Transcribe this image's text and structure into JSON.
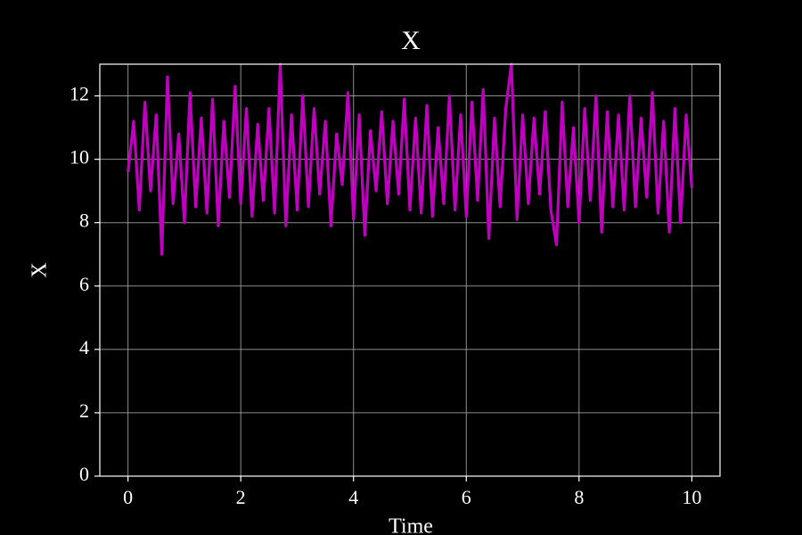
{
  "chart_data": {
    "type": "line",
    "title": "X",
    "x_label": "Time",
    "y_label": "X",
    "x": [
      0,
      0.1,
      0.2,
      0.3,
      0.4,
      0.5,
      0.6,
      0.7,
      0.8,
      0.9,
      1.0,
      1.1,
      1.2,
      1.3,
      1.4,
      1.5,
      1.6,
      1.7,
      1.8,
      1.9,
      2.0,
      2.1,
      2.2,
      2.3,
      2.4,
      2.5,
      2.6,
      2.7,
      2.8,
      2.9,
      3.0,
      3.1,
      3.2,
      3.3,
      3.4,
      3.5,
      3.6,
      3.7,
      3.8,
      3.9,
      4.0,
      4.1,
      4.2,
      4.3,
      4.4,
      4.5,
      4.6,
      4.7,
      4.8,
      4.9,
      5.0,
      5.1,
      5.2,
      5.3,
      5.4,
      5.5,
      5.6,
      5.7,
      5.8,
      5.9,
      6.0,
      6.1,
      6.2,
      6.3,
      6.4,
      6.5,
      6.6,
      6.7,
      6.8,
      6.9,
      7.0,
      7.1,
      7.2,
      7.3,
      7.4,
      7.5,
      7.6,
      7.7,
      7.8,
      7.9,
      8.0,
      8.1,
      8.2,
      8.3,
      8.4,
      8.5,
      8.6,
      8.7,
      8.8,
      8.9,
      9.0,
      9.1,
      9.2,
      9.3,
      9.4,
      9.5,
      9.6,
      9.7,
      9.8,
      9.9,
      10.0
    ],
    "series": [
      {
        "name": "X",
        "color": "#bf00bf",
        "values": [
          9.6,
          11.2,
          8.4,
          11.8,
          9.0,
          11.4,
          7.0,
          12.6,
          8.6,
          10.8,
          8.0,
          12.1,
          8.5,
          11.3,
          8.3,
          11.9,
          7.9,
          11.2,
          8.8,
          12.3,
          8.6,
          11.6,
          8.2,
          11.1,
          8.7,
          11.6,
          8.3,
          13.0,
          7.9,
          11.4,
          8.4,
          12.0,
          8.5,
          11.6,
          8.9,
          11.2,
          7.9,
          10.8,
          9.2,
          12.1,
          8.1,
          11.4,
          7.6,
          10.9,
          9.0,
          11.5,
          8.6,
          11.2,
          8.9,
          11.9,
          8.4,
          11.3,
          8.3,
          11.7,
          8.2,
          11.0,
          8.6,
          12.0,
          8.4,
          11.4,
          8.2,
          11.8,
          8.7,
          12.2,
          7.5,
          11.3,
          8.5,
          11.6,
          13.0,
          8.1,
          11.4,
          8.6,
          11.3,
          8.9,
          11.5,
          8.4,
          7.3,
          11.8,
          8.5,
          11.0,
          8.0,
          11.6,
          8.7,
          12.0,
          7.7,
          11.5,
          8.5,
          11.4,
          8.4,
          12.0,
          8.5,
          11.3,
          8.8,
          12.1,
          8.3,
          11.2,
          7.7,
          11.6,
          8.0,
          11.4,
          9.1
        ]
      }
    ],
    "xlim": [
      -0.5,
      10.5
    ],
    "ylim": [
      0,
      13
    ],
    "xticks": [
      0,
      2,
      4,
      6,
      8,
      10
    ],
    "yticks": [
      0,
      2,
      4,
      6,
      8,
      10,
      12
    ],
    "grid": true
  }
}
